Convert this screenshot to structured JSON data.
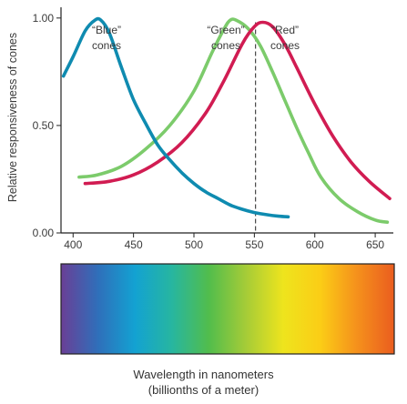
{
  "chart_data": {
    "type": "line",
    "title": "",
    "xlabel": "Wavelength in nanometers",
    "xlabel_sub": "(billionths of a meter)",
    "ylabel": "Relative responsiveness of cones",
    "xlim": [
      390,
      665
    ],
    "ylim": [
      0,
      1.05
    ],
    "x_ticks": [
      "400",
      "450",
      "500",
      "550",
      "600",
      "650"
    ],
    "y_ticks": [
      "0.00",
      "0.50",
      "1.00"
    ],
    "grid": false,
    "legend": "none",
    "reference_line": {
      "x": 551,
      "style": "dashed"
    },
    "spectrum_bar": {
      "colors": [
        "#6a3f96",
        "#2f6fba",
        "#13a2d2",
        "#27b6a0",
        "#52bd4c",
        "#a6cc37",
        "#eee41d",
        "#fbcd16",
        "#f5901c",
        "#ea5d1f"
      ]
    },
    "series": [
      {
        "name": "“Blue” cones",
        "label_line1": "“Blue”",
        "label_line2": "cones",
        "color": "#0f8bb0",
        "points": [
          [
            392,
            0.73
          ],
          [
            400,
            0.82
          ],
          [
            410,
            0.94
          ],
          [
            418,
            0.99
          ],
          [
            423,
            0.99
          ],
          [
            430,
            0.93
          ],
          [
            440,
            0.77
          ],
          [
            450,
            0.62
          ],
          [
            460,
            0.51
          ],
          [
            470,
            0.41
          ],
          [
            480,
            0.34
          ],
          [
            490,
            0.28
          ],
          [
            500,
            0.23
          ],
          [
            510,
            0.19
          ],
          [
            520,
            0.16
          ],
          [
            530,
            0.13
          ],
          [
            540,
            0.11
          ],
          [
            550,
            0.095
          ],
          [
            560,
            0.085
          ],
          [
            570,
            0.078
          ],
          [
            578,
            0.075
          ]
        ]
      },
      {
        "name": "“Green” cones",
        "label_line1": "“Green”",
        "label_line2": "cones",
        "color": "#7ccb6b",
        "points": [
          [
            405,
            0.26
          ],
          [
            420,
            0.27
          ],
          [
            440,
            0.31
          ],
          [
            460,
            0.39
          ],
          [
            480,
            0.5
          ],
          [
            500,
            0.66
          ],
          [
            515,
            0.84
          ],
          [
            525,
            0.95
          ],
          [
            530,
            0.99
          ],
          [
            535,
            0.99
          ],
          [
            545,
            0.95
          ],
          [
            555,
            0.87
          ],
          [
            565,
            0.75
          ],
          [
            575,
            0.62
          ],
          [
            585,
            0.49
          ],
          [
            595,
            0.37
          ],
          [
            605,
            0.26
          ],
          [
            620,
            0.16
          ],
          [
            635,
            0.1
          ],
          [
            650,
            0.06
          ],
          [
            660,
            0.05
          ]
        ]
      },
      {
        "name": "“Red” cones",
        "label_line1": "“Red”",
        "label_line2": "cones",
        "color": "#d11c52",
        "points": [
          [
            410,
            0.23
          ],
          [
            430,
            0.24
          ],
          [
            450,
            0.27
          ],
          [
            470,
            0.33
          ],
          [
            490,
            0.42
          ],
          [
            510,
            0.56
          ],
          [
            525,
            0.71
          ],
          [
            540,
            0.88
          ],
          [
            550,
            0.96
          ],
          [
            557,
            0.98
          ],
          [
            565,
            0.96
          ],
          [
            575,
            0.88
          ],
          [
            585,
            0.77
          ],
          [
            600,
            0.6
          ],
          [
            615,
            0.45
          ],
          [
            630,
            0.33
          ],
          [
            645,
            0.24
          ],
          [
            662,
            0.16
          ]
        ]
      }
    ]
  }
}
